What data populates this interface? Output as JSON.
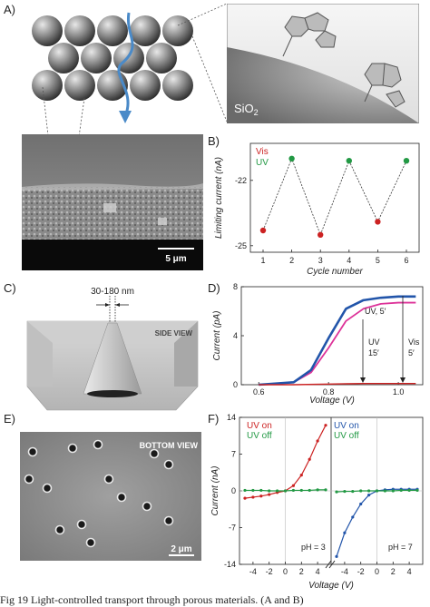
{
  "panels": {
    "A": {
      "label": "A)",
      "sio2_label": "SiO",
      "sio2_sub": "2",
      "scale_bar": "5 μm"
    },
    "B": {
      "label": "B)"
    },
    "C": {
      "label": "C)",
      "size_label": "30-180 nm",
      "view_label": "SIDE VIEW"
    },
    "D": {
      "label": "D)"
    },
    "E": {
      "label": "E)",
      "view_label": "BOTTOM VIEW",
      "scale_bar": "2 μm"
    },
    "F": {
      "label": "F)"
    }
  },
  "caption": "Fig 19   Light-controlled transport through porous materials. (A and B)",
  "colors": {
    "vis": "#cc2222",
    "uv": "#229944",
    "blue": "#2255aa",
    "pink": "#dd3399"
  },
  "chart_data": [
    {
      "type": "scatter",
      "panel": "B",
      "xlabel": "Cycle number",
      "ylabel": "Limiting current (nA)",
      "xticks": [
        "1",
        "2",
        "3",
        "4",
        "5",
        "6"
      ],
      "yticks": [
        "-22",
        "-25"
      ],
      "ylim": [
        -25.3,
        -20.3
      ],
      "series": [
        {
          "name": "Vis",
          "x": [
            1,
            3,
            5
          ],
          "y": [
            -24.3,
            -24.5,
            -23.9
          ]
        },
        {
          "name": "UV",
          "x": [
            2,
            4,
            6
          ],
          "y": [
            -21.0,
            -21.1,
            -21.1
          ]
        }
      ],
      "legend": [
        "Vis",
        "UV"
      ]
    },
    {
      "type": "line",
      "panel": "D",
      "xlabel": "Voltage (V)",
      "ylabel": "Current (pA)",
      "xticks": [
        "0.6",
        "0.8",
        "1.0"
      ],
      "yticks": [
        "0",
        "4",
        "8"
      ],
      "xlim": [
        0.55,
        1.07
      ],
      "ylim": [
        0,
        8
      ],
      "annotations": [
        "UV, 5′",
        "UV",
        "15′",
        "Vis",
        "5′"
      ],
      "series": [
        {
          "name": "UV, 5′",
          "x": [
            0.6,
            0.7,
            0.75,
            0.8,
            0.85,
            0.9,
            0.95,
            1.0,
            1.05
          ],
          "y": [
            0,
            0.2,
            1.0,
            3.0,
            5.2,
            6.2,
            6.6,
            6.7,
            6.7
          ]
        },
        {
          "name": "UV 15′",
          "x": [
            0.6,
            0.7,
            0.75,
            0.8,
            0.85,
            0.9,
            0.95,
            1.0,
            1.05
          ],
          "y": [
            0,
            0.2,
            1.2,
            3.8,
            6.2,
            6.9,
            7.1,
            7.2,
            7.2
          ]
        },
        {
          "name": "Vis 5′",
          "x": [
            0.6,
            0.7,
            0.8,
            0.9,
            1.0,
            1.05
          ],
          "y": [
            0,
            0,
            0.05,
            0.1,
            0.1,
            0.1
          ]
        }
      ]
    },
    {
      "type": "line",
      "panel": "F",
      "xlabel": "Voltage (V)",
      "ylabel": "Current (nA)",
      "yticks": [
        "14",
        "7",
        "0",
        "-7",
        "-14"
      ],
      "ylim": [
        -14,
        14
      ],
      "left": {
        "ph": "pH = 3",
        "xticks": [
          "-4",
          "-2",
          "0",
          "2",
          "4"
        ],
        "legend": [
          "UV on",
          "UV off"
        ],
        "series": [
          {
            "name": "UV on",
            "x": [
              -5,
              -4,
              -3,
              -2,
              -1,
              0,
              1,
              2,
              3,
              4,
              5
            ],
            "y": [
              -1.4,
              -1.2,
              -1.0,
              -0.7,
              -0.3,
              0,
              1.0,
              3.0,
              6.0,
              9.5,
              12.5
            ]
          },
          {
            "name": "UV off",
            "x": [
              -5,
              -4,
              -3,
              -2,
              -1,
              0,
              1,
              2,
              3,
              4,
              5
            ],
            "y": [
              0.1,
              0.1,
              0.1,
              0.0,
              0.0,
              0,
              0.1,
              0.1,
              0.1,
              0.2,
              0.2
            ]
          }
        ]
      },
      "right": {
        "ph": "pH = 7",
        "xticks": [
          "-4",
          "-2",
          "0",
          "2",
          "4"
        ],
        "legend": [
          "UV on",
          "UV off"
        ],
        "series": [
          {
            "name": "UV on",
            "x": [
              -5,
              -4,
              -3,
              -2,
              -1,
              0,
              1,
              2,
              3,
              4,
              5
            ],
            "y": [
              -12.5,
              -8.0,
              -5.0,
              -2.5,
              -0.8,
              0,
              0.2,
              0.3,
              0.3,
              0.3,
              0.3
            ]
          },
          {
            "name": "UV off",
            "x": [
              -5,
              -4,
              -3,
              -2,
              -1,
              0,
              1,
              2,
              3,
              4,
              5
            ],
            "y": [
              -0.2,
              -0.1,
              -0.1,
              0.0,
              0.0,
              0,
              0.0,
              0.0,
              0.1,
              0.1,
              0.1
            ]
          }
        ]
      }
    }
  ]
}
